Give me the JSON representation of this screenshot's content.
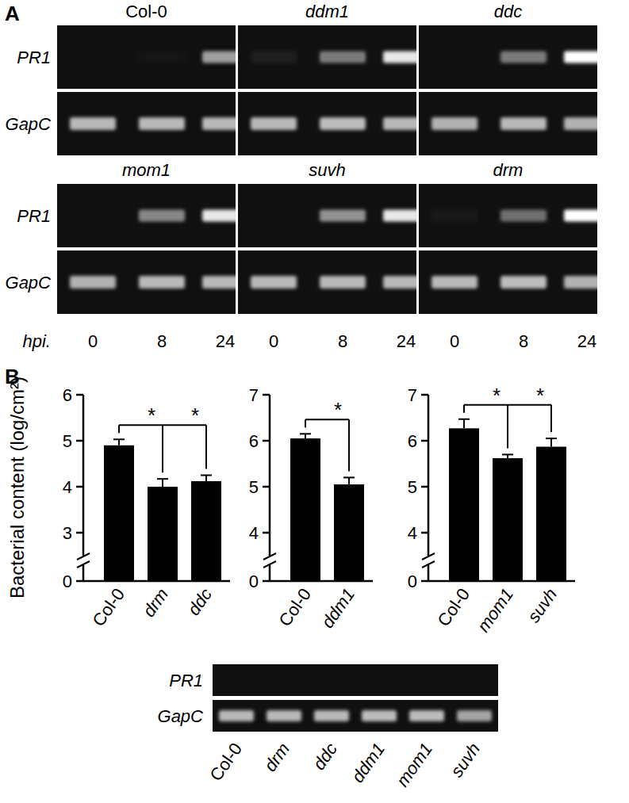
{
  "panel_labels": [
    "A",
    "B"
  ],
  "panel_a": {
    "row_labels": [
      "PR1",
      "GapC"
    ],
    "x_label": "hpi.",
    "timepoints": [
      0,
      8,
      24
    ],
    "gels": [
      {
        "genotype": "Col-0",
        "PR1": [
          0,
          0.02,
          0.6
        ],
        "GapC": [
          0.7,
          0.7,
          0.7
        ]
      },
      {
        "genotype": "ddm1",
        "PR1": [
          0.06,
          0.45,
          0.9
        ],
        "GapC": [
          0.7,
          0.72,
          0.7
        ]
      },
      {
        "genotype": "ddc",
        "PR1": [
          0,
          0.45,
          1
        ],
        "GapC": [
          0.68,
          0.7,
          0.68
        ]
      },
      {
        "genotype": "mom1",
        "PR1": [
          0,
          0.5,
          0.9
        ],
        "GapC": [
          0.68,
          0.7,
          0.7
        ]
      },
      {
        "genotype": "suvh",
        "PR1": [
          0,
          0.55,
          0.9
        ],
        "GapC": [
          0.7,
          0.7,
          0.7
        ]
      },
      {
        "genotype": "drm",
        "PR1": [
          0.04,
          0.4,
          1
        ],
        "GapC": [
          0.7,
          0.72,
          0.68
        ]
      }
    ]
  },
  "chart_data": [
    {
      "type": "bar",
      "y_label": "Bacterial content (log/cm²)",
      "categories": [
        "Col-0",
        "drm",
        "ddc"
      ],
      "values": [
        4.9,
        4.0,
        4.12
      ],
      "errors": [
        0.13,
        0.17,
        0.13
      ],
      "color": "#000000",
      "ylim": [
        0,
        6
      ],
      "yticks": [
        0,
        3,
        4,
        5,
        6
      ],
      "y_break": [
        0,
        3
      ],
      "comparisons": [
        {
          "pair": [
            0,
            1
          ],
          "label": "*"
        },
        {
          "pair": [
            0,
            2
          ],
          "label": "*"
        }
      ]
    },
    {
      "type": "bar",
      "categories": [
        "Col-0",
        "ddm1"
      ],
      "values": [
        6.05,
        5.05
      ],
      "errors": [
        0.1,
        0.15
      ],
      "color": "#000000",
      "ylim": [
        0,
        7
      ],
      "yticks": [
        0,
        4,
        5,
        6,
        7
      ],
      "y_break": [
        0,
        4
      ],
      "comparisons": [
        {
          "pair": [
            0,
            1
          ],
          "label": "*"
        }
      ]
    },
    {
      "type": "bar",
      "categories": [
        "Col-0",
        "mom1",
        "suvh"
      ],
      "values": [
        6.27,
        5.62,
        5.87
      ],
      "errors": [
        0.2,
        0.08,
        0.18
      ],
      "color": "#000000",
      "ylim": [
        0,
        7
      ],
      "yticks": [
        0,
        4,
        5,
        6,
        7
      ],
      "y_break": [
        0,
        4
      ],
      "comparisons": [
        {
          "pair": [
            0,
            1
          ],
          "label": "*"
        },
        {
          "pair": [
            0,
            2
          ],
          "label": "*"
        }
      ]
    }
  ],
  "panel_b_gel": {
    "row_labels": [
      "PR1",
      "GapC"
    ],
    "genotypes": [
      "Col-0",
      "drm",
      "ddc",
      "ddm1",
      "mom1",
      "suvh"
    ],
    "PR1": [
      0,
      0,
      0,
      0,
      0,
      0
    ],
    "GapC": [
      0.7,
      0.7,
      0.7,
      0.72,
      0.72,
      0.62
    ]
  }
}
